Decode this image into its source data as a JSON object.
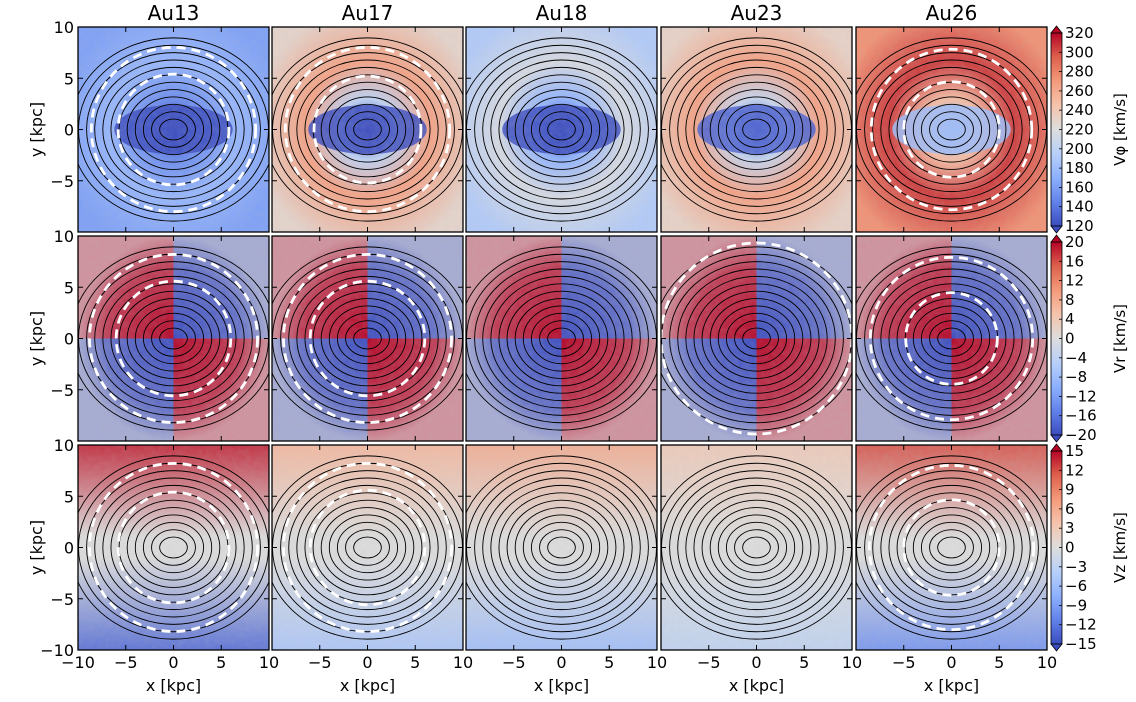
{
  "chart_data": {
    "type": "heatmap",
    "layout": "3 rows x 5 columns of face-on velocity maps with surface-density contours",
    "columns": [
      "Au13",
      "Au17",
      "Au18",
      "Au23",
      "Au26"
    ],
    "x_axis": {
      "label": "x [kpc]",
      "range": [
        -10,
        10
      ],
      "ticks": [
        -10,
        -5,
        0,
        5,
        10
      ],
      "tick_labels": [
        "−10",
        "−5",
        "0",
        "5",
        "10"
      ]
    },
    "y_axis": {
      "label": "y [kpc]",
      "range": [
        -10,
        10
      ],
      "ticks": [
        -5,
        0,
        5,
        10
      ],
      "tick_labels": [
        "−5",
        "0",
        "5",
        "10"
      ],
      "bottom_tick_label": "−10"
    },
    "rows": [
      {
        "quantity": "V_phi",
        "colorbar_label": "Vφ [km/s]",
        "colorbar_range": [
          120,
          320
        ],
        "colorbar_ticks": [
          120,
          140,
          160,
          180,
          200,
          220,
          240,
          260,
          280,
          300,
          320
        ],
        "colorbar_tick_labels": [
          "120",
          "140",
          "160",
          "180",
          "200",
          "220",
          "240",
          "260",
          "280",
          "300",
          "320"
        ],
        "panels": [
          {
            "model": "Au13",
            "inner_velocity": 120,
            "outer_velocity": 175,
            "bar_angle_deg": 0,
            "rings_kpc": [
              5.8,
              8.6
            ]
          },
          {
            "model": "Au17",
            "inner_velocity": 120,
            "outer_velocity": 265,
            "bar_angle_deg": 0,
            "rings_kpc": [
              5.6,
              8.6
            ]
          },
          {
            "model": "Au18",
            "inner_velocity": 120,
            "outer_velocity": 215,
            "bar_angle_deg": 0,
            "rings_kpc": []
          },
          {
            "model": "Au23",
            "inner_velocity": 130,
            "outer_velocity": 265,
            "bar_angle_deg": 0,
            "rings_kpc": []
          },
          {
            "model": "Au26",
            "inner_velocity": 180,
            "outer_velocity": 305,
            "bar_angle_deg": 0,
            "rings_kpc": [
              5.0,
              8.4
            ]
          }
        ]
      },
      {
        "quantity": "V_r",
        "colorbar_label": "Vr [km/s]",
        "colorbar_range": [
          -20,
          20
        ],
        "colorbar_ticks": [
          -20,
          -16,
          -12,
          -8,
          -4,
          0,
          4,
          8,
          12,
          16,
          20
        ],
        "colorbar_tick_labels": [
          "−20",
          "−16",
          "−12",
          "−8",
          "−4",
          "0",
          "4",
          "8",
          "12",
          "16",
          "20"
        ],
        "panels": [
          {
            "model": "Au13",
            "quadrupole_amplitude": 20,
            "bar_angle_deg": 0,
            "rings_kpc": [
              6.0,
              8.8
            ]
          },
          {
            "model": "Au17",
            "quadrupole_amplitude": 20,
            "bar_angle_deg": 0,
            "rings_kpc": [
              6.0,
              8.8
            ]
          },
          {
            "model": "Au18",
            "quadrupole_amplitude": 20,
            "bar_angle_deg": 0,
            "rings_kpc": []
          },
          {
            "model": "Au23",
            "quadrupole_amplitude": 20,
            "bar_angle_deg": 0,
            "rings_kpc": [
              10.0
            ]
          },
          {
            "model": "Au26",
            "quadrupole_amplitude": 20,
            "bar_angle_deg": 0,
            "rings_kpc": [
              4.8,
              8.5
            ]
          }
        ]
      },
      {
        "quantity": "V_z",
        "colorbar_label": "Vz [km/s]",
        "colorbar_range": [
          -15,
          15
        ],
        "colorbar_ticks": [
          -15,
          -12,
          -9,
          -6,
          -3,
          0,
          3,
          6,
          9,
          12,
          15
        ],
        "colorbar_tick_labels": [
          "−15",
          "−12",
          "−9",
          "−6",
          "−3",
          "0",
          "3",
          "6",
          "9",
          "12",
          "15"
        ],
        "panels": [
          {
            "model": "Au13",
            "top_value": 14,
            "bottom_value": -13,
            "bar_angle_deg": 0,
            "rings_kpc": [
              5.8,
              8.8
            ]
          },
          {
            "model": "Au17",
            "top_value": 5,
            "bottom_value": -5,
            "bar_angle_deg": 0,
            "rings_kpc": [
              6.0,
              8.8
            ]
          },
          {
            "model": "Au18",
            "top_value": 6,
            "bottom_value": -6,
            "bar_angle_deg": 0,
            "rings_kpc": []
          },
          {
            "model": "Au23",
            "top_value": 3,
            "bottom_value": -3,
            "bar_angle_deg": 0,
            "rings_kpc": []
          },
          {
            "model": "Au26",
            "top_value": 12,
            "bottom_value": -10,
            "bar_angle_deg": 0,
            "rings_kpc": [
              5.0,
              8.6
            ]
          }
        ]
      }
    ],
    "contours": {
      "color": "#000000",
      "shape": "elliptical isodensity",
      "center": [
        0,
        0
      ]
    },
    "rings": {
      "color": "#ffffff",
      "style": "dashed"
    },
    "grid": false,
    "colormap": "coolwarm (blue low, red high)"
  }
}
